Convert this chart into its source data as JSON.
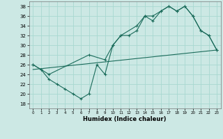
{
  "xlabel": "Humidex (Indice chaleur)",
  "xlim": [
    -0.5,
    23.5
  ],
  "ylim": [
    17,
    39
  ],
  "yticks": [
    18,
    20,
    22,
    24,
    26,
    28,
    30,
    32,
    34,
    36,
    38
  ],
  "xticks": [
    0,
    1,
    2,
    3,
    4,
    5,
    6,
    7,
    8,
    9,
    10,
    11,
    12,
    13,
    14,
    15,
    16,
    17,
    18,
    19,
    20,
    21,
    22,
    23
  ],
  "bg_color": "#cce8e4",
  "grid_color": "#a8d8d0",
  "line_color": "#1a6b5a",
  "line1_x": [
    0,
    1,
    2,
    3,
    4,
    5,
    6,
    7,
    8,
    9,
    10,
    11,
    12,
    13,
    14,
    15,
    16,
    17,
    18,
    19,
    20,
    21,
    22,
    23
  ],
  "line1_y": [
    26,
    25,
    23,
    22,
    21,
    20,
    19,
    20,
    26,
    24,
    30,
    32,
    32,
    33,
    36,
    35,
    37,
    38,
    37,
    38,
    36,
    33,
    32,
    29
  ],
  "line2_x": [
    0,
    1,
    2,
    7,
    9,
    10,
    11,
    13,
    14,
    15,
    16,
    17,
    18,
    19,
    20,
    21,
    22,
    23
  ],
  "line2_y": [
    26,
    25,
    24,
    28,
    27,
    30,
    32,
    34,
    36,
    36,
    37,
    38,
    37,
    38,
    36,
    33,
    32,
    29
  ],
  "line3_x": [
    0,
    23
  ],
  "line3_y": [
    25,
    29
  ]
}
